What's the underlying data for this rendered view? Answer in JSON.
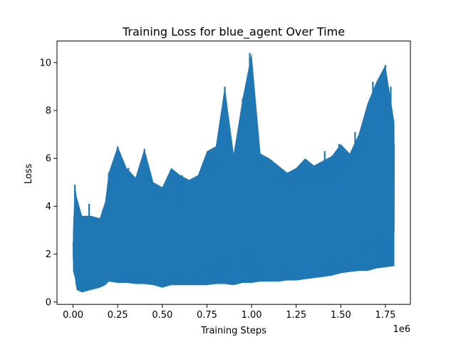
{
  "chart_data": {
    "type": "area",
    "title": "Training Loss for blue_agent Over Time",
    "xlabel": "Training Steps",
    "ylabel": "Loss",
    "x_offset_text": "1e6",
    "xlim": [
      -0.09,
      1.89
    ],
    "ylim": [
      -0.1,
      10.9
    ],
    "x_ticks": [
      0.0,
      0.25,
      0.5,
      0.75,
      1.0,
      1.25,
      1.5,
      1.75
    ],
    "x_tick_labels": [
      "0.00",
      "0.25",
      "0.50",
      "0.75",
      "1.00",
      "1.25",
      "1.50",
      "1.75"
    ],
    "y_ticks": [
      0,
      2,
      4,
      6,
      8,
      10
    ],
    "y_tick_labels": [
      "0",
      "2",
      "4",
      "6",
      "8",
      "10"
    ],
    "x_units_multiplier": 1000000,
    "grid": false,
    "legend": "none",
    "series": [
      {
        "color": "#1f77b4",
        "envelope_x": [
          0.0,
          0.01,
          0.02,
          0.05,
          0.1,
          0.15,
          0.18,
          0.2,
          0.25,
          0.3,
          0.35,
          0.4,
          0.45,
          0.5,
          0.55,
          0.6,
          0.65,
          0.7,
          0.75,
          0.8,
          0.85,
          0.9,
          0.95,
          1.0,
          1.05,
          1.1,
          1.15,
          1.2,
          1.25,
          1.3,
          1.35,
          1.4,
          1.45,
          1.5,
          1.55,
          1.6,
          1.65,
          1.7,
          1.75,
          1.8
        ],
        "upper": [
          3.0,
          4.9,
          4.4,
          3.6,
          3.6,
          3.5,
          4.2,
          5.4,
          6.5,
          5.6,
          5.2,
          6.4,
          5.0,
          4.8,
          5.6,
          5.3,
          5.1,
          5.3,
          6.3,
          6.5,
          9.0,
          6.2,
          8.5,
          10.4,
          6.2,
          6.0,
          5.7,
          5.4,
          5.6,
          6.0,
          5.7,
          5.9,
          6.1,
          6.6,
          6.2,
          7.0,
          8.3,
          9.2,
          9.9,
          7.5
        ],
        "lower": [
          1.3,
          1.0,
          0.5,
          0.4,
          0.5,
          0.6,
          0.7,
          0.85,
          0.8,
          0.8,
          0.75,
          0.75,
          0.7,
          0.6,
          0.7,
          0.7,
          0.7,
          0.7,
          0.7,
          0.75,
          0.75,
          0.7,
          0.8,
          0.8,
          0.85,
          0.85,
          0.85,
          0.9,
          0.9,
          0.95,
          1.0,
          1.05,
          1.1,
          1.2,
          1.25,
          1.3,
          1.3,
          1.4,
          1.45,
          1.5
        ]
      }
    ],
    "spikes": [
      {
        "x": 0.01,
        "y": 4.9
      },
      {
        "x": 0.09,
        "y": 4.1
      },
      {
        "x": 0.2,
        "y": 5.4
      },
      {
        "x": 0.25,
        "y": 6.5
      },
      {
        "x": 0.31,
        "y": 5.6
      },
      {
        "x": 0.4,
        "y": 6.4
      },
      {
        "x": 0.61,
        "y": 5.3
      },
      {
        "x": 0.77,
        "y": 6.3
      },
      {
        "x": 0.85,
        "y": 9.0
      },
      {
        "x": 0.89,
        "y": 6.2
      },
      {
        "x": 0.95,
        "y": 8.5
      },
      {
        "x": 0.96,
        "y": 7.6
      },
      {
        "x": 0.99,
        "y": 10.4
      },
      {
        "x": 1.02,
        "y": 5.8
      },
      {
        "x": 1.23,
        "y": 5.4
      },
      {
        "x": 1.41,
        "y": 6.3
      },
      {
        "x": 1.49,
        "y": 6.6
      },
      {
        "x": 1.58,
        "y": 7.1
      },
      {
        "x": 1.63,
        "y": 7.5
      },
      {
        "x": 1.68,
        "y": 9.2
      },
      {
        "x": 1.72,
        "y": 8.6
      },
      {
        "x": 1.75,
        "y": 9.9
      },
      {
        "x": 1.78,
        "y": 9.0
      }
    ]
  }
}
